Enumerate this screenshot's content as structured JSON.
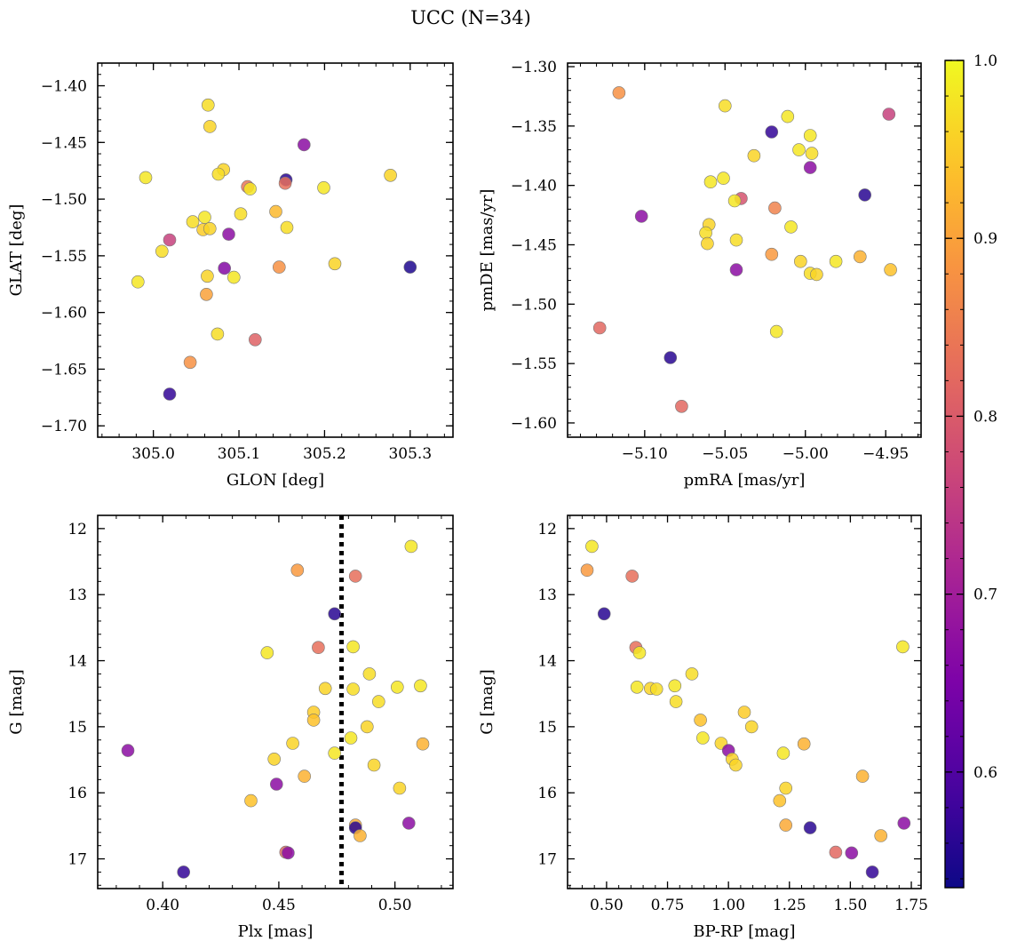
{
  "figure": {
    "title": "UCC (N=34)"
  },
  "colorbar": {
    "range": [
      0.535,
      1.0
    ],
    "tick_values": [
      0.6,
      0.7,
      0.8,
      0.9,
      1.0
    ],
    "tick_labels": [
      "0.6",
      "0.7",
      "0.8",
      "0.9",
      "1.0"
    ],
    "colormap": "plasma"
  },
  "chart_data": [
    {
      "type": "scatter",
      "title": "",
      "xlabel": "GLON [deg]",
      "ylabel": "GLAT [deg]",
      "xlim": [
        304.935,
        305.35
      ],
      "ylim": [
        -1.71,
        -1.38
      ],
      "x_ticks": [
        305.0,
        305.1,
        305.2,
        305.3
      ],
      "x_tick_labels": [
        "305.0",
        "305.1",
        "305.2",
        "305.3"
      ],
      "y_ticks": [
        -1.4,
        -1.45,
        -1.5,
        -1.55,
        -1.6,
        -1.65,
        -1.7
      ],
      "y_tick_labels": [
        "−1.40",
        "−1.45",
        "−1.50",
        "−1.55",
        "−1.60",
        "−1.65",
        "−1.70"
      ],
      "y_inverted": false,
      "points": [
        {
          "x": 305.064,
          "y": -1.417,
          "c": 0.97
        },
        {
          "x": 305.066,
          "y": -1.436,
          "c": 0.96
        },
        {
          "x": 304.991,
          "y": -1.481,
          "c": 0.98
        },
        {
          "x": 305.082,
          "y": -1.474,
          "c": 0.96
        },
        {
          "x": 305.076,
          "y": -1.478,
          "c": 0.97
        },
        {
          "x": 305.11,
          "y": -1.489,
          "c": 0.84
        },
        {
          "x": 305.113,
          "y": -1.491,
          "c": 0.98
        },
        {
          "x": 305.155,
          "y": -1.483,
          "c": 0.56
        },
        {
          "x": 305.154,
          "y": -1.486,
          "c": 0.83
        },
        {
          "x": 305.176,
          "y": -1.452,
          "c": 0.67
        },
        {
          "x": 305.199,
          "y": -1.49,
          "c": 0.98
        },
        {
          "x": 305.277,
          "y": -1.479,
          "c": 0.96
        },
        {
          "x": 305.102,
          "y": -1.513,
          "c": 0.97
        },
        {
          "x": 305.143,
          "y": -1.511,
          "c": 0.93
        },
        {
          "x": 305.156,
          "y": -1.525,
          "c": 0.97
        },
        {
          "x": 305.046,
          "y": -1.52,
          "c": 0.97
        },
        {
          "x": 305.06,
          "y": -1.516,
          "c": 0.98
        },
        {
          "x": 305.058,
          "y": -1.527,
          "c": 0.95
        },
        {
          "x": 305.066,
          "y": -1.526,
          "c": 0.96
        },
        {
          "x": 305.019,
          "y": -1.536,
          "c": 0.76
        },
        {
          "x": 305.088,
          "y": -1.531,
          "c": 0.67
        },
        {
          "x": 305.01,
          "y": -1.546,
          "c": 0.97
        },
        {
          "x": 305.063,
          "y": -1.568,
          "c": 0.96
        },
        {
          "x": 305.094,
          "y": -1.569,
          "c": 0.98
        },
        {
          "x": 305.083,
          "y": -1.561,
          "c": 0.66
        },
        {
          "x": 305.147,
          "y": -1.56,
          "c": 0.88
        },
        {
          "x": 305.212,
          "y": -1.557,
          "c": 0.96
        },
        {
          "x": 305.3,
          "y": -1.56,
          "c": 0.55
        },
        {
          "x": 304.982,
          "y": -1.573,
          "c": 0.98
        },
        {
          "x": 305.062,
          "y": -1.584,
          "c": 0.9
        },
        {
          "x": 305.075,
          "y": -1.619,
          "c": 0.97
        },
        {
          "x": 305.119,
          "y": -1.624,
          "c": 0.81
        },
        {
          "x": 305.043,
          "y": -1.644,
          "c": 0.88
        },
        {
          "x": 305.019,
          "y": -1.672,
          "c": 0.57
        }
      ]
    },
    {
      "type": "scatter",
      "title": "",
      "xlabel": "pmRA [mas/yr]",
      "ylabel": "pmDE [mas/yr]",
      "xlim": [
        -5.148,
        -4.928
      ],
      "ylim": [
        -1.612,
        -1.297
      ],
      "x_ticks": [
        -5.1,
        -5.05,
        -5.0,
        -4.95
      ],
      "x_tick_labels": [
        "−5.10",
        "−5.05",
        "−5.00",
        "−4.95"
      ],
      "y_ticks": [
        -1.3,
        -1.35,
        -1.4,
        -1.45,
        -1.5,
        -1.55,
        -1.6
      ],
      "y_tick_labels": [
        "−1.30",
        "−1.35",
        "−1.40",
        "−1.45",
        "−1.50",
        "−1.55",
        "−1.60"
      ],
      "y_inverted": false,
      "points": [
        {
          "x": -5.116,
          "y": -1.322,
          "c": 0.88
        },
        {
          "x": -5.05,
          "y": -1.333,
          "c": 0.97
        },
        {
          "x": -5.011,
          "y": -1.342,
          "c": 0.98
        },
        {
          "x": -4.948,
          "y": -1.34,
          "c": 0.76
        },
        {
          "x": -5.021,
          "y": -1.355,
          "c": 0.57
        },
        {
          "x": -4.997,
          "y": -1.358,
          "c": 0.98
        },
        {
          "x": -5.004,
          "y": -1.37,
          "c": 0.98
        },
        {
          "x": -4.996,
          "y": -1.373,
          "c": 0.97
        },
        {
          "x": -5.032,
          "y": -1.375,
          "c": 0.96
        },
        {
          "x": -4.997,
          "y": -1.385,
          "c": 0.67
        },
        {
          "x": -5.059,
          "y": -1.397,
          "c": 0.98
        },
        {
          "x": -5.051,
          "y": -1.394,
          "c": 0.98
        },
        {
          "x": -4.963,
          "y": -1.408,
          "c": 0.56
        },
        {
          "x": -5.04,
          "y": -1.411,
          "c": 0.79
        },
        {
          "x": -5.044,
          "y": -1.413,
          "c": 0.98
        },
        {
          "x": -5.019,
          "y": -1.419,
          "c": 0.86
        },
        {
          "x": -5.102,
          "y": -1.426,
          "c": 0.67
        },
        {
          "x": -5.06,
          "y": -1.433,
          "c": 0.96
        },
        {
          "x": -5.062,
          "y": -1.44,
          "c": 0.97
        },
        {
          "x": -5.009,
          "y": -1.435,
          "c": 0.98
        },
        {
          "x": -5.061,
          "y": -1.449,
          "c": 0.96
        },
        {
          "x": -5.043,
          "y": -1.446,
          "c": 0.97
        },
        {
          "x": -5.021,
          "y": -1.458,
          "c": 0.89
        },
        {
          "x": -5.003,
          "y": -1.464,
          "c": 0.96
        },
        {
          "x": -4.981,
          "y": -1.464,
          "c": 0.98
        },
        {
          "x": -4.966,
          "y": -1.46,
          "c": 0.92
        },
        {
          "x": -5.043,
          "y": -1.471,
          "c": 0.67
        },
        {
          "x": -4.997,
          "y": -1.474,
          "c": 0.97
        },
        {
          "x": -4.993,
          "y": -1.475,
          "c": 0.96
        },
        {
          "x": -4.947,
          "y": -1.471,
          "c": 0.94
        },
        {
          "x": -5.018,
          "y": -1.523,
          "c": 0.98
        },
        {
          "x": -5.128,
          "y": -1.52,
          "c": 0.82
        },
        {
          "x": -5.084,
          "y": -1.545,
          "c": 0.56
        },
        {
          "x": -5.077,
          "y": -1.586,
          "c": 0.82
        }
      ]
    },
    {
      "type": "scatter",
      "title": "",
      "xlabel": "Plx [mas]",
      "ylabel": "G [mag]",
      "xlim": [
        0.372,
        0.525
      ],
      "ylim": [
        11.8,
        17.45
      ],
      "x_ticks": [
        0.4,
        0.45,
        0.5
      ],
      "x_tick_labels": [
        "0.40",
        "0.45",
        "0.50"
      ],
      "y_ticks": [
        12,
        13,
        14,
        15,
        16,
        17
      ],
      "y_tick_labels": [
        "12",
        "13",
        "14",
        "15",
        "16",
        "17"
      ],
      "y_inverted": true,
      "vline": {
        "x": 0.477,
        "style": "dotted"
      },
      "points": [
        {
          "x": 0.507,
          "y": 12.27,
          "c": 0.98
        },
        {
          "x": 0.458,
          "y": 12.63,
          "c": 0.89
        },
        {
          "x": 0.483,
          "y": 12.72,
          "c": 0.83
        },
        {
          "x": 0.474,
          "y": 13.29,
          "c": 0.56
        },
        {
          "x": 0.467,
          "y": 13.8,
          "c": 0.83
        },
        {
          "x": 0.482,
          "y": 13.79,
          "c": 0.98
        },
        {
          "x": 0.445,
          "y": 13.88,
          "c": 0.98
        },
        {
          "x": 0.489,
          "y": 14.2,
          "c": 0.97
        },
        {
          "x": 0.47,
          "y": 14.42,
          "c": 0.96
        },
        {
          "x": 0.482,
          "y": 14.43,
          "c": 0.97
        },
        {
          "x": 0.501,
          "y": 14.4,
          "c": 0.98
        },
        {
          "x": 0.511,
          "y": 14.38,
          "c": 0.98
        },
        {
          "x": 0.493,
          "y": 14.62,
          "c": 0.97
        },
        {
          "x": 0.465,
          "y": 14.78,
          "c": 0.95
        },
        {
          "x": 0.465,
          "y": 14.9,
          "c": 0.94
        },
        {
          "x": 0.488,
          "y": 15.0,
          "c": 0.96
        },
        {
          "x": 0.481,
          "y": 15.17,
          "c": 0.98
        },
        {
          "x": 0.456,
          "y": 15.25,
          "c": 0.96
        },
        {
          "x": 0.512,
          "y": 15.26,
          "c": 0.92
        },
        {
          "x": 0.385,
          "y": 15.36,
          "c": 0.67
        },
        {
          "x": 0.474,
          "y": 15.4,
          "c": 0.98
        },
        {
          "x": 0.448,
          "y": 15.49,
          "c": 0.96
        },
        {
          "x": 0.491,
          "y": 15.58,
          "c": 0.96
        },
        {
          "x": 0.461,
          "y": 15.75,
          "c": 0.92
        },
        {
          "x": 0.449,
          "y": 15.87,
          "c": 0.67
        },
        {
          "x": 0.502,
          "y": 15.93,
          "c": 0.96
        },
        {
          "x": 0.438,
          "y": 16.12,
          "c": 0.94
        },
        {
          "x": 0.506,
          "y": 16.46,
          "c": 0.67
        },
        {
          "x": 0.483,
          "y": 16.49,
          "c": 0.91
        },
        {
          "x": 0.483,
          "y": 16.53,
          "c": 0.56
        },
        {
          "x": 0.485,
          "y": 16.65,
          "c": 0.92
        },
        {
          "x": 0.453,
          "y": 16.9,
          "c": 0.82
        },
        {
          "x": 0.454,
          "y": 16.91,
          "c": 0.67
        },
        {
          "x": 0.409,
          "y": 17.2,
          "c": 0.57
        }
      ]
    },
    {
      "type": "scatter",
      "title": "",
      "xlabel": "BP-RP [mag]",
      "ylabel": "G [mag]",
      "xlim": [
        0.34,
        1.79
      ],
      "ylim": [
        11.8,
        17.45
      ],
      "x_ticks": [
        0.5,
        0.75,
        1.0,
        1.25,
        1.5,
        1.75
      ],
      "x_tick_labels": [
        "0.50",
        "0.75",
        "1.00",
        "1.25",
        "1.50",
        "1.75"
      ],
      "y_ticks": [
        12,
        13,
        14,
        15,
        16,
        17
      ],
      "y_tick_labels": [
        "12",
        "13",
        "14",
        "15",
        "16",
        "17"
      ],
      "y_inverted": true,
      "points": [
        {
          "x": 0.44,
          "y": 12.27,
          "c": 0.98
        },
        {
          "x": 0.42,
          "y": 12.63,
          "c": 0.89
        },
        {
          "x": 0.605,
          "y": 12.72,
          "c": 0.83
        },
        {
          "x": 0.49,
          "y": 13.29,
          "c": 0.56
        },
        {
          "x": 0.62,
          "y": 13.8,
          "c": 0.83
        },
        {
          "x": 0.635,
          "y": 13.88,
          "c": 0.98
        },
        {
          "x": 1.715,
          "y": 13.79,
          "c": 0.98
        },
        {
          "x": 0.85,
          "y": 14.2,
          "c": 0.97
        },
        {
          "x": 0.78,
          "y": 14.38,
          "c": 0.98
        },
        {
          "x": 0.625,
          "y": 14.4,
          "c": 0.98
        },
        {
          "x": 0.68,
          "y": 14.42,
          "c": 0.96
        },
        {
          "x": 0.705,
          "y": 14.43,
          "c": 0.97
        },
        {
          "x": 0.785,
          "y": 14.62,
          "c": 0.97
        },
        {
          "x": 1.065,
          "y": 14.78,
          "c": 0.95
        },
        {
          "x": 0.885,
          "y": 14.9,
          "c": 0.94
        },
        {
          "x": 1.095,
          "y": 15.0,
          "c": 0.96
        },
        {
          "x": 0.895,
          "y": 15.17,
          "c": 0.98
        },
        {
          "x": 0.97,
          "y": 15.25,
          "c": 0.96
        },
        {
          "x": 1.31,
          "y": 15.26,
          "c": 0.92
        },
        {
          "x": 1.0,
          "y": 15.36,
          "c": 0.67
        },
        {
          "x": 1.225,
          "y": 15.4,
          "c": 0.98
        },
        {
          "x": 1.015,
          "y": 15.49,
          "c": 0.96
        },
        {
          "x": 1.03,
          "y": 15.58,
          "c": 0.96
        },
        {
          "x": 1.55,
          "y": 15.75,
          "c": 0.92
        },
        {
          "x": 1.235,
          "y": 15.93,
          "c": 0.96
        },
        {
          "x": 1.21,
          "y": 16.12,
          "c": 0.94
        },
        {
          "x": 1.72,
          "y": 16.46,
          "c": 0.67
        },
        {
          "x": 1.235,
          "y": 16.49,
          "c": 0.91
        },
        {
          "x": 1.335,
          "y": 16.53,
          "c": 0.56
        },
        {
          "x": 1.625,
          "y": 16.65,
          "c": 0.92
        },
        {
          "x": 1.44,
          "y": 16.9,
          "c": 0.82
        },
        {
          "x": 1.505,
          "y": 16.91,
          "c": 0.67
        },
        {
          "x": 1.59,
          "y": 17.2,
          "c": 0.57
        }
      ]
    }
  ]
}
